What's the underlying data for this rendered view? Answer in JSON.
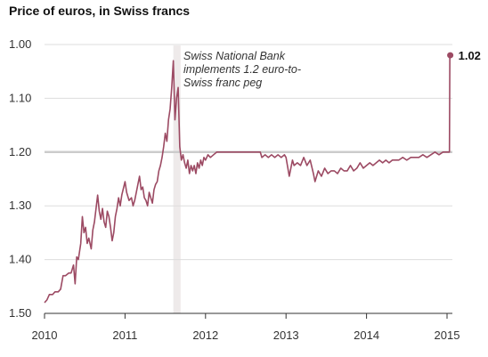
{
  "chart_data": {
    "type": "line",
    "title": "Price of euros, in Swiss francs",
    "xlabel": "",
    "ylabel": "",
    "x_ticks": [
      "2010",
      "2011",
      "2012",
      "2013",
      "2014",
      "2015"
    ],
    "y_ticks": [
      "1.00",
      "1.10",
      "1.20",
      "1.30",
      "1.40",
      "1.50"
    ],
    "ylim": [
      1.5,
      1.0
    ],
    "y_inverted": true,
    "xlim": [
      2010.0,
      2015.05
    ],
    "grid": "horizontal",
    "reference_line": {
      "y": 1.2
    },
    "shaded_band": {
      "x_start": 2011.6,
      "x_end": 2011.69
    },
    "annotation": {
      "lines": [
        "Swiss National Bank",
        "implements 1.2 euro-to-",
        "Swiss franc peg"
      ]
    },
    "end_point": {
      "x": 2015.04,
      "y": 1.02,
      "label": "1.02"
    },
    "colors": {
      "line": "#9c4a63",
      "grid": "#dddddd",
      "reference": "#cccccc",
      "band": "#eeeaea"
    },
    "series": [
      {
        "values": [
          [
            2010.0,
            1.48
          ],
          [
            2010.03,
            1.475
          ],
          [
            2010.06,
            1.465
          ],
          [
            2010.1,
            1.465
          ],
          [
            2010.13,
            1.46
          ],
          [
            2010.17,
            1.46
          ],
          [
            2010.2,
            1.455
          ],
          [
            2010.23,
            1.43
          ],
          [
            2010.26,
            1.43
          ],
          [
            2010.3,
            1.425
          ],
          [
            2010.33,
            1.425
          ],
          [
            2010.36,
            1.41
          ],
          [
            2010.38,
            1.445
          ],
          [
            2010.4,
            1.395
          ],
          [
            2010.42,
            1.4
          ],
          [
            2010.45,
            1.37
          ],
          [
            2010.47,
            1.32
          ],
          [
            2010.49,
            1.35
          ],
          [
            2010.51,
            1.34
          ],
          [
            2010.53,
            1.37
          ],
          [
            2010.55,
            1.36
          ],
          [
            2010.58,
            1.38
          ],
          [
            2010.6,
            1.345
          ],
          [
            2010.62,
            1.33
          ],
          [
            2010.64,
            1.305
          ],
          [
            2010.66,
            1.28
          ],
          [
            2010.68,
            1.31
          ],
          [
            2010.7,
            1.325
          ],
          [
            2010.72,
            1.305
          ],
          [
            2010.74,
            1.33
          ],
          [
            2010.76,
            1.34
          ],
          [
            2010.78,
            1.31
          ],
          [
            2010.8,
            1.32
          ],
          [
            2010.82,
            1.34
          ],
          [
            2010.84,
            1.365
          ],
          [
            2010.86,
            1.35
          ],
          [
            2010.88,
            1.32
          ],
          [
            2010.9,
            1.305
          ],
          [
            2010.92,
            1.285
          ],
          [
            2010.94,
            1.3
          ],
          [
            2010.96,
            1.28
          ],
          [
            2011.0,
            1.255
          ],
          [
            2011.02,
            1.275
          ],
          [
            2011.05,
            1.29
          ],
          [
            2011.08,
            1.285
          ],
          [
            2011.1,
            1.3
          ],
          [
            2011.12,
            1.29
          ],
          [
            2011.14,
            1.275
          ],
          [
            2011.16,
            1.26
          ],
          [
            2011.18,
            1.245
          ],
          [
            2011.2,
            1.27
          ],
          [
            2011.22,
            1.265
          ],
          [
            2011.24,
            1.285
          ],
          [
            2011.26,
            1.29
          ],
          [
            2011.28,
            1.3
          ],
          [
            2011.3,
            1.275
          ],
          [
            2011.32,
            1.285
          ],
          [
            2011.34,
            1.295
          ],
          [
            2011.36,
            1.27
          ],
          [
            2011.38,
            1.26
          ],
          [
            2011.4,
            1.255
          ],
          [
            2011.42,
            1.235
          ],
          [
            2011.44,
            1.225
          ],
          [
            2011.46,
            1.21
          ],
          [
            2011.48,
            1.19
          ],
          [
            2011.5,
            1.165
          ],
          [
            2011.52,
            1.18
          ],
          [
            2011.54,
            1.14
          ],
          [
            2011.56,
            1.12
          ],
          [
            2011.58,
            1.08
          ],
          [
            2011.6,
            1.03
          ],
          [
            2011.62,
            1.14
          ],
          [
            2011.64,
            1.1
          ],
          [
            2011.66,
            1.08
          ],
          [
            2011.68,
            1.19
          ],
          [
            2011.7,
            1.215
          ],
          [
            2011.72,
            1.205
          ],
          [
            2011.74,
            1.22
          ],
          [
            2011.76,
            1.23
          ],
          [
            2011.78,
            1.215
          ],
          [
            2011.8,
            1.24
          ],
          [
            2011.82,
            1.225
          ],
          [
            2011.84,
            1.235
          ],
          [
            2011.86,
            1.225
          ],
          [
            2011.88,
            1.24
          ],
          [
            2011.9,
            1.22
          ],
          [
            2011.92,
            1.23
          ],
          [
            2011.94,
            1.215
          ],
          [
            2011.96,
            1.225
          ],
          [
            2011.98,
            1.21
          ],
          [
            2012.0,
            1.215
          ],
          [
            2012.03,
            1.205
          ],
          [
            2012.06,
            1.21
          ],
          [
            2012.1,
            1.205
          ],
          [
            2012.14,
            1.2
          ],
          [
            2012.2,
            1.2
          ],
          [
            2012.4,
            1.2
          ],
          [
            2012.6,
            1.2
          ],
          [
            2012.68,
            1.2
          ],
          [
            2012.7,
            1.21
          ],
          [
            2012.74,
            1.205
          ],
          [
            2012.78,
            1.21
          ],
          [
            2012.82,
            1.205
          ],
          [
            2012.86,
            1.21
          ],
          [
            2012.9,
            1.205
          ],
          [
            2012.94,
            1.21
          ],
          [
            2012.98,
            1.205
          ],
          [
            2013.0,
            1.21
          ],
          [
            2013.04,
            1.245
          ],
          [
            2013.06,
            1.23
          ],
          [
            2013.08,
            1.215
          ],
          [
            2013.1,
            1.225
          ],
          [
            2013.14,
            1.22
          ],
          [
            2013.18,
            1.225
          ],
          [
            2013.22,
            1.21
          ],
          [
            2013.26,
            1.225
          ],
          [
            2013.3,
            1.215
          ],
          [
            2013.34,
            1.24
          ],
          [
            2013.36,
            1.255
          ],
          [
            2013.4,
            1.235
          ],
          [
            2013.44,
            1.245
          ],
          [
            2013.48,
            1.23
          ],
          [
            2013.52,
            1.24
          ],
          [
            2013.56,
            1.235
          ],
          [
            2013.6,
            1.235
          ],
          [
            2013.64,
            1.24
          ],
          [
            2013.68,
            1.23
          ],
          [
            2013.72,
            1.235
          ],
          [
            2013.76,
            1.235
          ],
          [
            2013.8,
            1.225
          ],
          [
            2013.84,
            1.235
          ],
          [
            2013.88,
            1.23
          ],
          [
            2013.92,
            1.22
          ],
          [
            2013.96,
            1.23
          ],
          [
            2014.0,
            1.225
          ],
          [
            2014.04,
            1.22
          ],
          [
            2014.08,
            1.225
          ],
          [
            2014.12,
            1.22
          ],
          [
            2014.16,
            1.215
          ],
          [
            2014.2,
            1.22
          ],
          [
            2014.24,
            1.215
          ],
          [
            2014.28,
            1.22
          ],
          [
            2014.32,
            1.215
          ],
          [
            2014.36,
            1.215
          ],
          [
            2014.4,
            1.215
          ],
          [
            2014.45,
            1.21
          ],
          [
            2014.5,
            1.215
          ],
          [
            2014.55,
            1.21
          ],
          [
            2014.6,
            1.21
          ],
          [
            2014.65,
            1.21
          ],
          [
            2014.7,
            1.205
          ],
          [
            2014.75,
            1.21
          ],
          [
            2014.8,
            1.205
          ],
          [
            2014.85,
            1.2
          ],
          [
            2014.9,
            1.205
          ],
          [
            2014.95,
            1.2
          ],
          [
            2015.0,
            1.2
          ],
          [
            2015.03,
            1.2
          ],
          [
            2015.035,
            1.02
          ],
          [
            2015.04,
            1.02
          ]
        ]
      }
    ]
  }
}
